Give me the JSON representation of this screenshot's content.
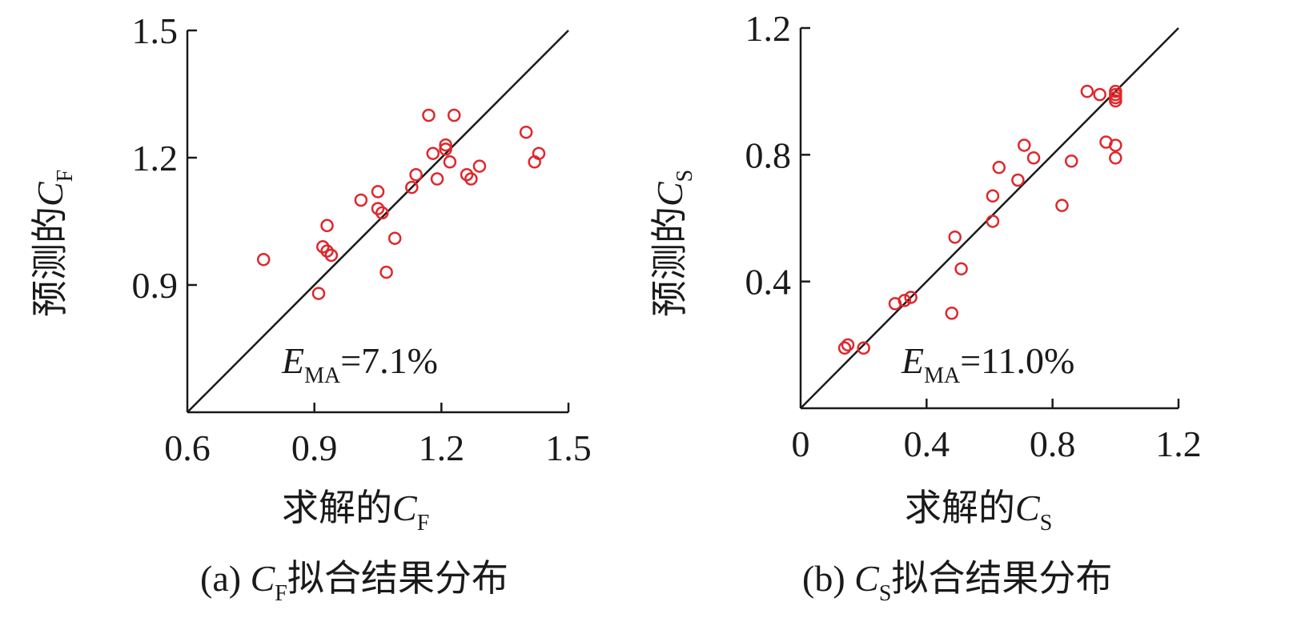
{
  "chart_data": [
    {
      "type": "scatter",
      "panel": "a",
      "caption": {
        "prefix": "(a) ",
        "var": "C",
        "sub": "F",
        "suffix": "拟合结果分布"
      },
      "xlabel": {
        "text": "求解的",
        "var": "C",
        "sub": "F"
      },
      "ylabel": {
        "text": "预测的",
        "var": "C",
        "sub": "F"
      },
      "annotation": {
        "var": "E",
        "sub": "MA",
        "text": "=7.1%"
      },
      "xlim": [
        0.6,
        1.5
      ],
      "ylim": [
        0.6,
        1.5
      ],
      "xticks": [
        "0.6",
        "0.9",
        "1.2",
        "1.5"
      ],
      "yticks": [
        "0.9",
        "1.2",
        "1.5"
      ],
      "reference_line": "y=x",
      "marker_color": "#e0262b",
      "points": [
        [
          0.78,
          0.96
        ],
        [
          0.91,
          0.88
        ],
        [
          0.92,
          0.99
        ],
        [
          0.93,
          0.98
        ],
        [
          0.94,
          0.97
        ],
        [
          0.93,
          1.04
        ],
        [
          1.01,
          1.1
        ],
        [
          1.05,
          1.12
        ],
        [
          1.05,
          1.08
        ],
        [
          1.06,
          1.07
        ],
        [
          1.07,
          0.93
        ],
        [
          1.09,
          1.01
        ],
        [
          1.13,
          1.13
        ],
        [
          1.14,
          1.16
        ],
        [
          1.17,
          1.3
        ],
        [
          1.18,
          1.21
        ],
        [
          1.19,
          1.15
        ],
        [
          1.21,
          1.23
        ],
        [
          1.21,
          1.22
        ],
        [
          1.22,
          1.19
        ],
        [
          1.23,
          1.3
        ],
        [
          1.26,
          1.16
        ],
        [
          1.27,
          1.15
        ],
        [
          1.29,
          1.18
        ],
        [
          1.4,
          1.26
        ],
        [
          1.42,
          1.19
        ],
        [
          1.43,
          1.21
        ]
      ]
    },
    {
      "type": "scatter",
      "panel": "b",
      "caption": {
        "prefix": "(b) ",
        "var": "C",
        "sub": "S",
        "suffix": "拟合结果分布"
      },
      "xlabel": {
        "text": "求解的",
        "var": "C",
        "sub": "S"
      },
      "ylabel": {
        "text": "预测的",
        "var": "C",
        "sub": "S"
      },
      "annotation": {
        "var": "E",
        "sub": "MA",
        "text": "=11.0%"
      },
      "xlim": [
        0,
        1.2
      ],
      "ylim": [
        0,
        1.2
      ],
      "xticks": [
        "0",
        "0.4",
        "0.8",
        "1.2"
      ],
      "yticks": [
        "0.4",
        "0.8",
        "1.2"
      ],
      "reference_line": "y=x",
      "marker_color": "#e0262b",
      "points": [
        [
          0.14,
          0.19
        ],
        [
          0.15,
          0.2
        ],
        [
          0.2,
          0.19
        ],
        [
          0.3,
          0.33
        ],
        [
          0.33,
          0.34
        ],
        [
          0.35,
          0.35
        ],
        [
          0.48,
          0.3
        ],
        [
          0.49,
          0.54
        ],
        [
          0.51,
          0.44
        ],
        [
          0.61,
          0.59
        ],
        [
          0.61,
          0.67
        ],
        [
          0.63,
          0.76
        ],
        [
          0.69,
          0.72
        ],
        [
          0.71,
          0.83
        ],
        [
          0.74,
          0.79
        ],
        [
          0.83,
          0.64
        ],
        [
          0.86,
          0.78
        ],
        [
          0.91,
          1.0
        ],
        [
          0.95,
          0.99
        ],
        [
          0.97,
          0.84
        ],
        [
          1.0,
          1.0
        ],
        [
          1.0,
          0.99
        ],
        [
          1.0,
          0.98
        ],
        [
          1.0,
          0.97
        ],
        [
          1.0,
          0.83
        ],
        [
          1.0,
          0.79
        ]
      ]
    }
  ]
}
